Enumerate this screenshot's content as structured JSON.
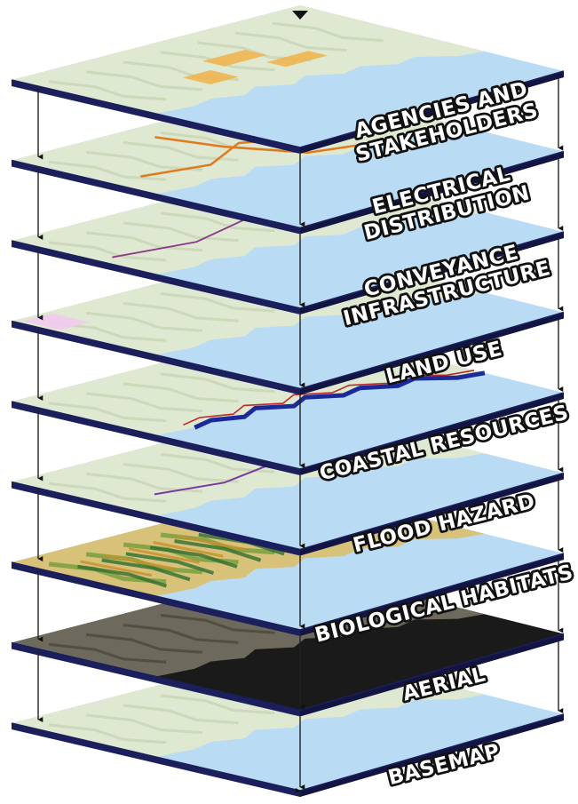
{
  "layers": [
    {
      "id": "agencies",
      "label_lines": [
        "AGENCIES AND",
        "STAKEHOLDERS"
      ],
      "style": "map",
      "overlay": "agency-patches"
    },
    {
      "id": "electrical",
      "label_lines": [
        "ELECTRICAL",
        "DISTRIBUTION"
      ],
      "style": "map",
      "overlay": "power-lines"
    },
    {
      "id": "conveyance",
      "label_lines": [
        "CONVEYANCE",
        "INFRASTRUCTURE"
      ],
      "style": "map",
      "overlay": "pipelines"
    },
    {
      "id": "land-use",
      "label_lines": [
        "LAND USE"
      ],
      "style": "map",
      "overlay": "land-zones"
    },
    {
      "id": "coastal",
      "label_lines": [
        "COASTAL RESOURCES"
      ],
      "style": "map",
      "overlay": "coastline"
    },
    {
      "id": "flood",
      "label_lines": [
        "FLOOD HAZARD"
      ],
      "style": "map",
      "overlay": "floodplain"
    },
    {
      "id": "habitats",
      "label_lines": [
        "BIOLOGICAL HABITATS"
      ],
      "style": "habitat",
      "overlay": "habitat-mosaic"
    },
    {
      "id": "aerial",
      "label_lines": [
        "AERIAL"
      ],
      "style": "aerial",
      "overlay": "none"
    },
    {
      "id": "basemap",
      "label_lines": [
        "BASEMAP"
      ],
      "style": "map",
      "overlay": "none"
    }
  ],
  "colors": {
    "water": "#b9dcf4",
    "land": "#dfe8d0",
    "edge": "#1b1f5c",
    "connector": "#222222",
    "electrical": "#e07a1f",
    "agency": "#f0b14a",
    "conveyance": "#8a3a8a",
    "coastal": "#1a2a9a",
    "coastal_red": "#c0282a",
    "flood": "#7a3aa0",
    "land_pink": "#f3a8ad",
    "land_lilac": "#c9b8f0"
  }
}
